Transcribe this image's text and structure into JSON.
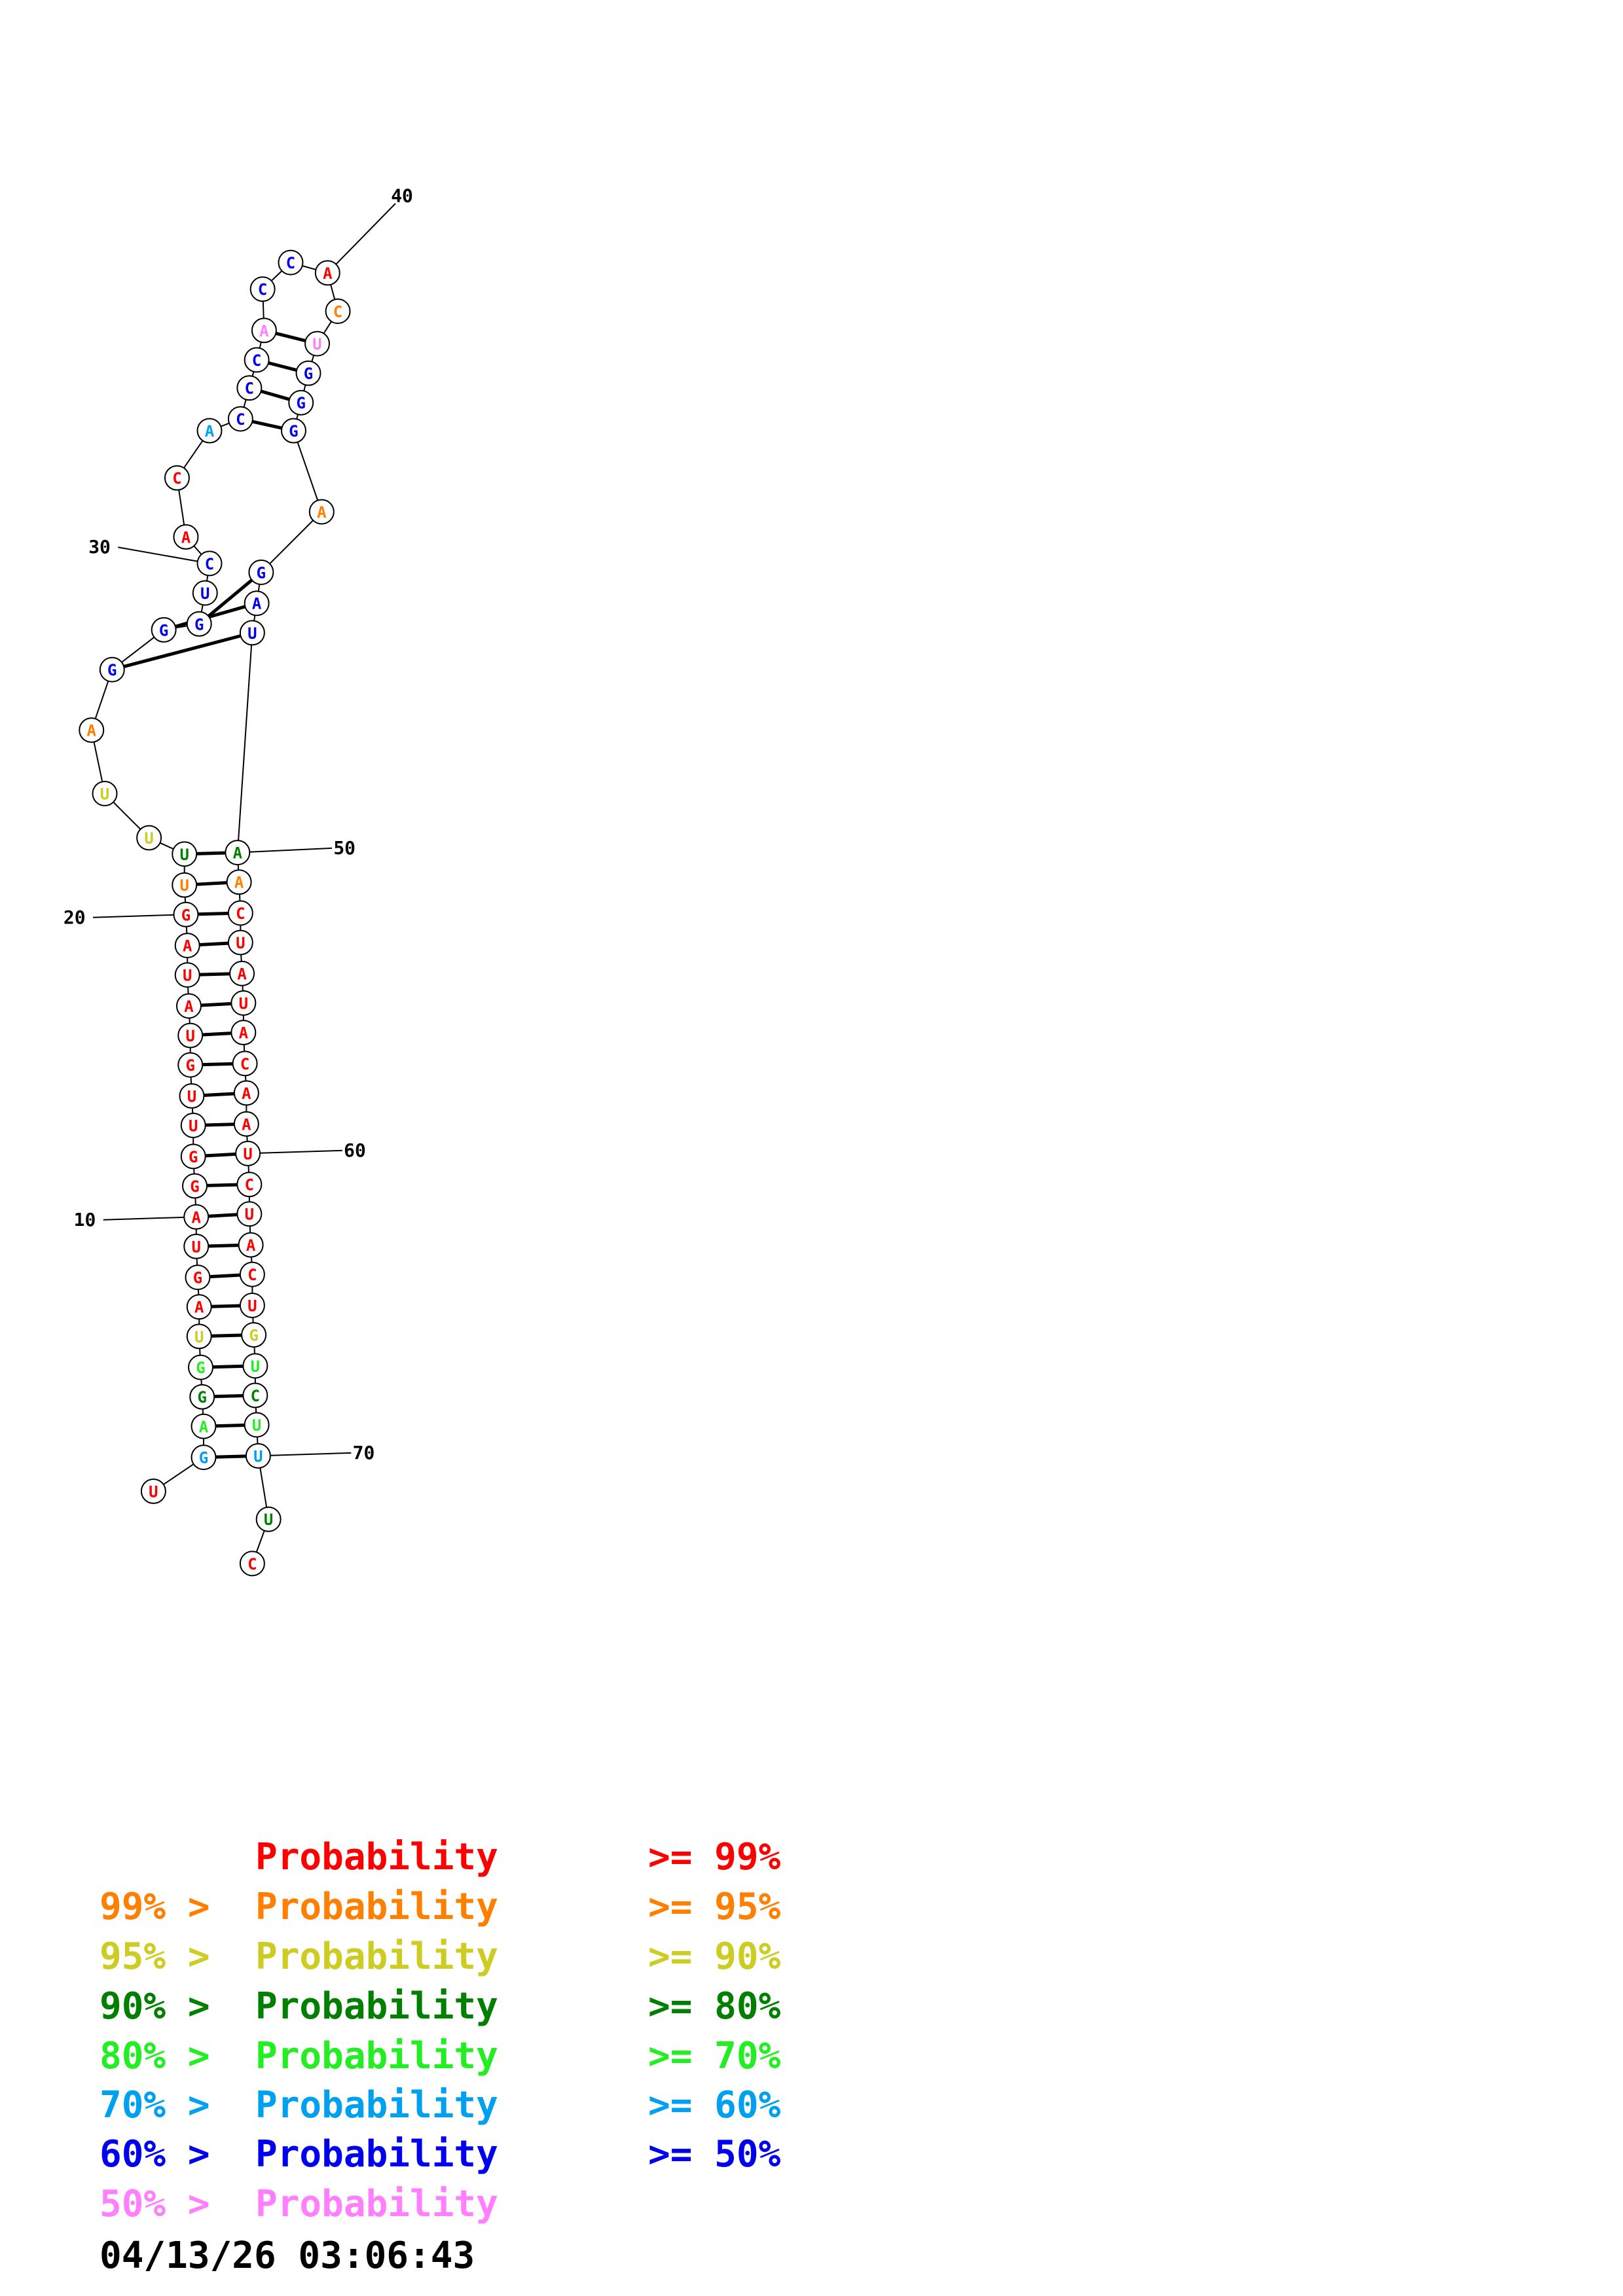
{
  "colors": {
    "p99": "#ff0000",
    "p95": "#ff7f00",
    "p90": "#cccc22",
    "p80": "#007f00",
    "p70": "#22ee22",
    "p60": "#00a0f0",
    "p50": "#0000ee",
    "plow": "#ff7fff"
  },
  "structure": {
    "nucleotides": [
      {
        "n": 1,
        "base": "U",
        "p": "p99"
      },
      {
        "n": 2,
        "base": "G",
        "p": "p60"
      },
      {
        "n": 3,
        "base": "A",
        "p": "p70"
      },
      {
        "n": 4,
        "base": "G",
        "p": "p80"
      },
      {
        "n": 5,
        "base": "G",
        "p": "p70"
      },
      {
        "n": 6,
        "base": "U",
        "p": "p90"
      },
      {
        "n": 7,
        "base": "A",
        "p": "p99"
      },
      {
        "n": 8,
        "base": "G",
        "p": "p99"
      },
      {
        "n": 9,
        "base": "U",
        "p": "p99"
      },
      {
        "n": 10,
        "base": "A",
        "p": "p99"
      },
      {
        "n": 11,
        "base": "G",
        "p": "p99"
      },
      {
        "n": 12,
        "base": "G",
        "p": "p99"
      },
      {
        "n": 13,
        "base": "U",
        "p": "p99"
      },
      {
        "n": 14,
        "base": "U",
        "p": "p99"
      },
      {
        "n": 15,
        "base": "G",
        "p": "p99"
      },
      {
        "n": 16,
        "base": "U",
        "p": "p99"
      },
      {
        "n": 17,
        "base": "A",
        "p": "p99"
      },
      {
        "n": 18,
        "base": "U",
        "p": "p99"
      },
      {
        "n": 19,
        "base": "A",
        "p": "p99"
      },
      {
        "n": 20,
        "base": "G",
        "p": "p99"
      },
      {
        "n": 21,
        "base": "U",
        "p": "p95"
      },
      {
        "n": 22,
        "base": "U",
        "p": "p80"
      },
      {
        "n": 23,
        "base": "U",
        "p": "p90"
      },
      {
        "n": 24,
        "base": "U",
        "p": "p90"
      },
      {
        "n": 25,
        "base": "A",
        "p": "p95"
      },
      {
        "n": 26,
        "base": "G",
        "p": "p50"
      },
      {
        "n": 27,
        "base": "G",
        "p": "p50"
      },
      {
        "n": 28,
        "base": "G",
        "p": "p50"
      },
      {
        "n": 29,
        "base": "U",
        "p": "p50"
      },
      {
        "n": 30,
        "base": "C",
        "p": "p50"
      },
      {
        "n": 31,
        "base": "A",
        "p": "p99"
      },
      {
        "n": 32,
        "base": "C",
        "p": "p99"
      },
      {
        "n": 33,
        "base": "A",
        "p": "p60"
      },
      {
        "n": 34,
        "base": "C",
        "p": "p50"
      },
      {
        "n": 35,
        "base": "C",
        "p": "p50"
      },
      {
        "n": 36,
        "base": "C",
        "p": "p50"
      },
      {
        "n": 37,
        "base": "A",
        "p": "plow"
      },
      {
        "n": 38,
        "base": "C",
        "p": "p50"
      },
      {
        "n": 39,
        "base": "C",
        "p": "p50"
      },
      {
        "n": 40,
        "base": "A",
        "p": "p99"
      },
      {
        "n": 41,
        "base": "C",
        "p": "p95"
      },
      {
        "n": 42,
        "base": "U",
        "p": "plow"
      },
      {
        "n": 43,
        "base": "G",
        "p": "p50"
      },
      {
        "n": 44,
        "base": "G",
        "p": "p50"
      },
      {
        "n": 45,
        "base": "G",
        "p": "p50"
      },
      {
        "n": 46,
        "base": "A",
        "p": "p95"
      },
      {
        "n": 47,
        "base": "G",
        "p": "p50"
      },
      {
        "n": 48,
        "base": "A",
        "p": "p50"
      },
      {
        "n": 49,
        "base": "U",
        "p": "p50"
      },
      {
        "n": 50,
        "base": "A",
        "p": "p80"
      },
      {
        "n": 51,
        "base": "A",
        "p": "p95"
      },
      {
        "n": 52,
        "base": "C",
        "p": "p99"
      },
      {
        "n": 53,
        "base": "U",
        "p": "p99"
      },
      {
        "n": 54,
        "base": "A",
        "p": "p99"
      },
      {
        "n": 55,
        "base": "U",
        "p": "p99"
      },
      {
        "n": 56,
        "base": "A",
        "p": "p99"
      },
      {
        "n": 57,
        "base": "C",
        "p": "p99"
      },
      {
        "n": 58,
        "base": "A",
        "p": "p99"
      },
      {
        "n": 59,
        "base": "A",
        "p": "p99"
      },
      {
        "n": 60,
        "base": "U",
        "p": "p99"
      },
      {
        "n": 61,
        "base": "C",
        "p": "p99"
      },
      {
        "n": 62,
        "base": "U",
        "p": "p99"
      },
      {
        "n": 63,
        "base": "A",
        "p": "p99"
      },
      {
        "n": 64,
        "base": "C",
        "p": "p99"
      },
      {
        "n": 65,
        "base": "U",
        "p": "p99"
      },
      {
        "n": 66,
        "base": "G",
        "p": "p90"
      },
      {
        "n": 67,
        "base": "U",
        "p": "p70"
      },
      {
        "n": 68,
        "base": "C",
        "p": "p80"
      },
      {
        "n": 69,
        "base": "U",
        "p": "p70"
      },
      {
        "n": 70,
        "base": "U",
        "p": "p60"
      },
      {
        "n": 71,
        "base": "U",
        "p": "p80"
      },
      {
        "n": 72,
        "base": "C",
        "p": "p99"
      }
    ],
    "pairs": [
      [
        2,
        70
      ],
      [
        3,
        69
      ],
      [
        4,
        68
      ],
      [
        5,
        67
      ],
      [
        6,
        66
      ],
      [
        7,
        65
      ],
      [
        8,
        64
      ],
      [
        9,
        63
      ],
      [
        10,
        62
      ],
      [
        11,
        61
      ],
      [
        12,
        60
      ],
      [
        13,
        59
      ],
      [
        14,
        58
      ],
      [
        15,
        57
      ],
      [
        16,
        56
      ],
      [
        17,
        55
      ],
      [
        18,
        54
      ],
      [
        19,
        53
      ],
      [
        20,
        52
      ],
      [
        21,
        51
      ],
      [
        22,
        50
      ],
      [
        26,
        49
      ],
      [
        27,
        48
      ],
      [
        28,
        47
      ],
      [
        34,
        45
      ],
      [
        35,
        44
      ],
      [
        36,
        43
      ],
      [
        37,
        42
      ]
    ],
    "position_labels": [
      {
        "n": 10,
        "text": "10"
      },
      {
        "n": 20,
        "text": "20"
      },
      {
        "n": 30,
        "text": "30"
      },
      {
        "n": 40,
        "text": "40"
      },
      {
        "n": 50,
        "text": "50"
      },
      {
        "n": 60,
        "text": "60"
      },
      {
        "n": 70,
        "text": "70"
      }
    ]
  },
  "legend": [
    {
      "prefix": "",
      "main": "Probability",
      "suffix": ">= 99%",
      "color": "#ff0000"
    },
    {
      "prefix": "99% >",
      "main": "Probability",
      "suffix": ">= 95%",
      "color": "#ff7f00"
    },
    {
      "prefix": "95% >",
      "main": "Probability",
      "suffix": ">= 90%",
      "color": "#cccc22"
    },
    {
      "prefix": "90% >",
      "main": "Probability",
      "suffix": ">= 80%",
      "color": "#007f00"
    },
    {
      "prefix": "80% >",
      "main": "Probability",
      "suffix": ">= 70%",
      "color": "#22ee22"
    },
    {
      "prefix": "70% >",
      "main": "Probability",
      "suffix": ">= 60%",
      "color": "#00a0f0"
    },
    {
      "prefix": "60% >",
      "main": "Probability",
      "suffix": ">= 50%",
      "color": "#0000ee"
    },
    {
      "prefix": "50% >",
      "main": "Probability",
      "suffix": "",
      "color": "#ff7fff"
    }
  ],
  "timestamp": "04/13/26 03:06:43"
}
